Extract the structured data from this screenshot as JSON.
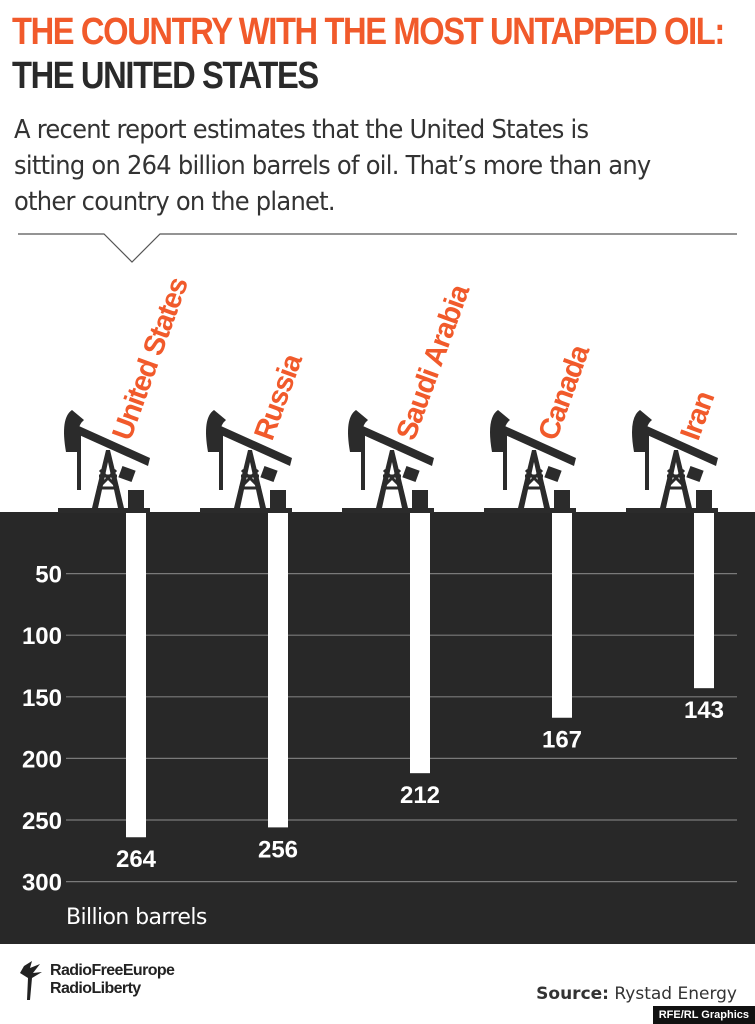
{
  "header": {
    "title_line1": "THE COUNTRY WITH THE MOST UNTAPPED OIL:",
    "title_line2": "THE UNITED STATES",
    "subtitle": "A recent report estimates that the United States is sitting on 264 billion barrels of oil. That’s more than any other country on the planet."
  },
  "chart_data": {
    "type": "bar",
    "orientation": "vertical-downward",
    "categories": [
      "United States",
      "Russia",
      "Saudi Arabia",
      "Canada",
      "Iran"
    ],
    "values": [
      264,
      256,
      212,
      167,
      143
    ],
    "data_labels": [
      "264",
      "256",
      "212",
      "167",
      "143"
    ],
    "ylabel": "Billion barrels",
    "ylim": [
      0,
      300
    ],
    "yticks": [
      50,
      100,
      150,
      200,
      250,
      300
    ],
    "grid": true,
    "colors": {
      "accent": "#f15a2b",
      "ground": "#282828",
      "bar": "#ffffff",
      "grid": "#7a7a7a",
      "pump": "#2b2b2b"
    }
  },
  "footer": {
    "logo_line1": "RadioFreeEurope",
    "logo_line2": "RadioLiberty",
    "source_label": "Source:",
    "source_value": "Rystad Energy",
    "credit": "RFE/RL Graphics"
  }
}
